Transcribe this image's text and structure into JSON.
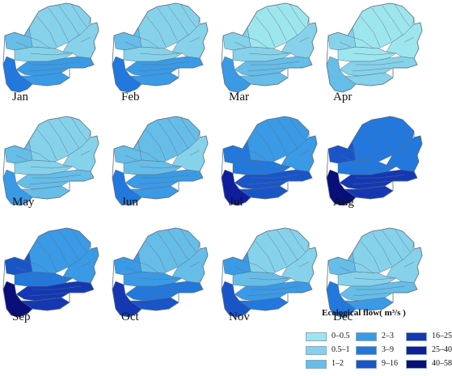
{
  "legend": {
    "title": "Ecological flow( m³/s )",
    "classes": [
      {
        "label": "0–0.5",
        "color": "#9ee6ee"
      },
      {
        "label": "0.5–1",
        "color": "#86d2ea"
      },
      {
        "label": "1–2",
        "color": "#66bde8"
      },
      {
        "label": "2–3",
        "color": "#3a9ae6"
      },
      {
        "label": "3–9",
        "color": "#2278dc"
      },
      {
        "label": "9–16",
        "color": "#1a55c8"
      },
      {
        "label": "16–25",
        "color": "#1538b2"
      },
      {
        "label": "25–40",
        "color": "#101e9c"
      },
      {
        "label": "40–58",
        "color": "#090f78"
      }
    ]
  },
  "outline_color": "#5b6f80",
  "maps": [
    {
      "month": "Jan",
      "cls": {
        "north": 1,
        "center": 1,
        "east": 1,
        "mid": 2,
        "fingers": 3,
        "southwest": 4,
        "south": 3
      }
    },
    {
      "month": "Feb",
      "cls": {
        "north": 1,
        "center": 1,
        "east": 1,
        "mid": 2,
        "fingers": 3,
        "southwest": 4,
        "south": 3
      }
    },
    {
      "month": "Mar",
      "cls": {
        "north": 0,
        "center": 1,
        "east": 1,
        "mid": 1,
        "fingers": 2,
        "southwest": 3,
        "south": 2
      }
    },
    {
      "month": "Apr",
      "cls": {
        "north": 0,
        "center": 0,
        "east": 0,
        "mid": 1,
        "fingers": 1,
        "southwest": 2,
        "south": 1
      }
    },
    {
      "month": "May",
      "cls": {
        "north": 1,
        "center": 1,
        "east": 1,
        "mid": 2,
        "fingers": 2,
        "southwest": 3,
        "south": 2
      }
    },
    {
      "month": "Jun",
      "cls": {
        "north": 2,
        "center": 2,
        "east": 1,
        "mid": 2,
        "fingers": 3,
        "southwest": 4,
        "south": 3
      }
    },
    {
      "month": "Jul",
      "cls": {
        "north": 3,
        "center": 4,
        "east": 3,
        "mid": 4,
        "fingers": 5,
        "southwest": 7,
        "south": 5
      }
    },
    {
      "month": "Aug",
      "cls": {
        "north": 4,
        "center": 4,
        "east": 4,
        "mid": 5,
        "fingers": 6,
        "southwest": 8,
        "south": 6
      }
    },
    {
      "month": "Sep",
      "cls": {
        "north": 3,
        "center": 4,
        "east": 3,
        "mid": 5,
        "fingers": 6,
        "southwest": 8,
        "south": 6
      }
    },
    {
      "month": "Oct",
      "cls": {
        "north": 2,
        "center": 3,
        "east": 2,
        "mid": 3,
        "fingers": 4,
        "southwest": 6,
        "south": 5
      }
    },
    {
      "month": "Nov",
      "cls": {
        "north": 1,
        "center": 2,
        "east": 1,
        "mid": 3,
        "fingers": 3,
        "southwest": 5,
        "south": 4
      }
    },
    {
      "month": "Dec",
      "cls": {
        "north": 1,
        "center": 1,
        "east": 1,
        "mid": 2,
        "fingers": 2,
        "southwest": 4,
        "south": 3
      }
    }
  ]
}
